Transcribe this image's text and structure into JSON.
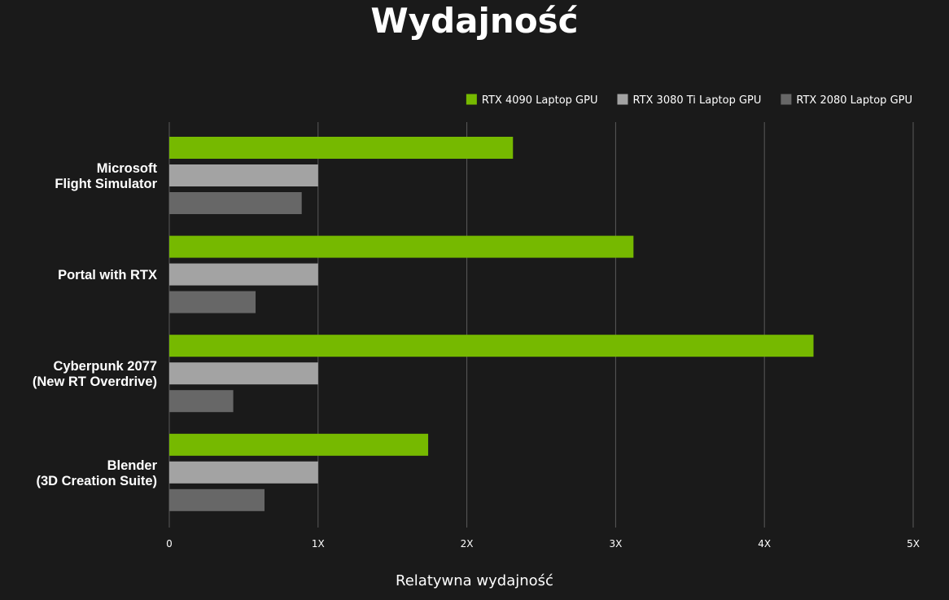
{
  "colors": {
    "background": "#1a1a1a",
    "grid": "#5a5a5a",
    "series": [
      "#76b900",
      "#a3a3a3",
      "#676767"
    ]
  },
  "chart_data": {
    "type": "bar",
    "orientation": "horizontal",
    "title": "Wydajność",
    "xlabel": "Relatywna wydajność",
    "ylabel": "",
    "xlim": [
      0,
      5
    ],
    "ticks": [
      {
        "value": 0,
        "label": "0"
      },
      {
        "value": 1,
        "label": "1X"
      },
      {
        "value": 2,
        "label": "2X"
      },
      {
        "value": 3,
        "label": "3X"
      },
      {
        "value": 4,
        "label": "4X"
      },
      {
        "value": 5,
        "label": "5X"
      }
    ],
    "grid": true,
    "legend_position": "top-right",
    "categories": [
      [
        "Microsoft",
        "Flight Simulator"
      ],
      [
        "Portal with RTX"
      ],
      [
        "Cyberpunk 2077",
        "(New RT Overdrive)"
      ],
      [
        "Blender",
        "(3D Creation Suite)"
      ]
    ],
    "series": [
      {
        "name": "RTX 4090 Laptop GPU",
        "values": [
          2.31,
          3.12,
          4.33,
          1.74
        ]
      },
      {
        "name": "RTX 3080 Ti Laptop GPU",
        "values": [
          1.0,
          1.0,
          1.0,
          1.0
        ]
      },
      {
        "name": "RTX 2080 Laptop GPU",
        "values": [
          0.89,
          0.58,
          0.43,
          0.64
        ]
      }
    ]
  }
}
